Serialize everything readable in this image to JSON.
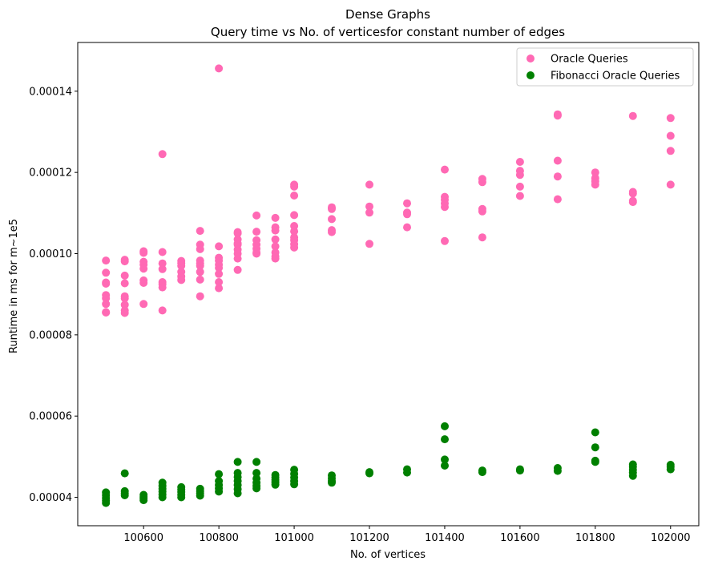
{
  "chart_data": {
    "type": "scatter",
    "title": "Dense Graphs",
    "subtitle": "Query time vs No. of verticesfor constant number of edges",
    "xlabel": "No. of vertices",
    "ylabel": "Runtime in ms for m~1e5",
    "xlim": [
      100425,
      102075
    ],
    "ylim": [
      3.3e-05,
      0.000152
    ],
    "xticks": [
      100600,
      100800,
      101000,
      101200,
      101400,
      101600,
      101800,
      102000
    ],
    "xtick_labels": [
      "100600",
      "100800",
      "101000",
      "101200",
      "101400",
      "101600",
      "101800",
      "102000"
    ],
    "yticks": [
      4e-05,
      6e-05,
      8e-05,
      0.0001,
      0.00012,
      0.00014
    ],
    "ytick_labels": [
      "0.00004",
      "0.00006",
      "0.00008",
      "0.00010",
      "0.00012",
      "0.00014"
    ],
    "grid": false,
    "legend_position": "top-right",
    "series": [
      {
        "name": "Oracle Queries",
        "color": "#ff69b4",
        "points": [
          [
            100500,
            9.83e-05
          ],
          [
            100500,
            9.53e-05
          ],
          [
            100500,
            9.29e-05
          ],
          [
            100500,
            9.26e-05
          ],
          [
            100500,
            8.98e-05
          ],
          [
            100500,
            8.9e-05
          ],
          [
            100500,
            8.76e-05
          ],
          [
            100500,
            8.56e-05
          ],
          [
            100500,
            8.55e-05
          ],
          [
            100550,
            9.85e-05
          ],
          [
            100550,
            9.81e-05
          ],
          [
            100550,
            9.46e-05
          ],
          [
            100550,
            9.27e-05
          ],
          [
            100550,
            8.95e-05
          ],
          [
            100550,
            8.9e-05
          ],
          [
            100550,
            8.74e-05
          ],
          [
            100550,
            8.6e-05
          ],
          [
            100550,
            8.54e-05
          ],
          [
            100600,
            0.0001006
          ],
          [
            100600,
            0.0001002
          ],
          [
            100600,
            9.8e-05
          ],
          [
            100600,
            9.73e-05
          ],
          [
            100600,
            9.63e-05
          ],
          [
            100600,
            9.34e-05
          ],
          [
            100600,
            9.28e-05
          ],
          [
            100600,
            8.76e-05
          ],
          [
            100650,
            0.0001245
          ],
          [
            100650,
            0.0001004
          ],
          [
            100650,
            9.76e-05
          ],
          [
            100650,
            9.62e-05
          ],
          [
            100650,
            9.3e-05
          ],
          [
            100650,
            9.25e-05
          ],
          [
            100650,
            9.17e-05
          ],
          [
            100650,
            8.6e-05
          ],
          [
            100700,
            9.82e-05
          ],
          [
            100700,
            9.77e-05
          ],
          [
            100700,
            9.7e-05
          ],
          [
            100700,
            9.55e-05
          ],
          [
            100700,
            9.44e-05
          ],
          [
            100700,
            9.35e-05
          ],
          [
            100750,
            0.0001056
          ],
          [
            100750,
            0.0001022
          ],
          [
            100750,
            0.0001011
          ],
          [
            100750,
            9.83e-05
          ],
          [
            100750,
            9.76e-05
          ],
          [
            100750,
            9.7e-05
          ],
          [
            100750,
            9.55e-05
          ],
          [
            100750,
            9.36e-05
          ],
          [
            100750,
            8.95e-05
          ],
          [
            100800,
            0.0001456
          ],
          [
            100800,
            0.0001018
          ],
          [
            100800,
            9.9e-05
          ],
          [
            100800,
            9.83e-05
          ],
          [
            100800,
            9.73e-05
          ],
          [
            100800,
            9.65e-05
          ],
          [
            100800,
            9.5e-05
          ],
          [
            100800,
            9.3e-05
          ],
          [
            100800,
            9.15e-05
          ],
          [
            100850,
            0.0001053
          ],
          [
            100850,
            0.000105
          ],
          [
            100850,
            0.0001035
          ],
          [
            100850,
            0.0001025
          ],
          [
            100850,
            0.0001022
          ],
          [
            100850,
            0.000101
          ],
          [
            100850,
            0.0001
          ],
          [
            100850,
            9.88e-05
          ],
          [
            100850,
            9.6e-05
          ],
          [
            100900,
            0.0001094
          ],
          [
            100900,
            0.0001054
          ],
          [
            100900,
            0.0001033
          ],
          [
            100900,
            0.0001022
          ],
          [
            100900,
            0.0001012
          ],
          [
            100900,
            0.0001003
          ],
          [
            100900,
            0.0001
          ],
          [
            100950,
            0.0001088
          ],
          [
            100950,
            0.0001065
          ],
          [
            100950,
            0.0001057
          ],
          [
            100950,
            0.0001035
          ],
          [
            100950,
            0.0001018
          ],
          [
            100950,
            0.0001003
          ],
          [
            100950,
            9.93e-05
          ],
          [
            100950,
            9.88e-05
          ],
          [
            101000,
            0.000117
          ],
          [
            101000,
            0.0001165
          ],
          [
            101000,
            0.0001143
          ],
          [
            101000,
            0.0001095
          ],
          [
            101000,
            0.0001068
          ],
          [
            101000,
            0.0001055
          ],
          [
            101000,
            0.000104
          ],
          [
            101000,
            0.0001033
          ],
          [
            101000,
            0.0001023
          ],
          [
            101000,
            0.0001015
          ],
          [
            101100,
            0.0001114
          ],
          [
            101100,
            0.000111
          ],
          [
            101100,
            0.0001085
          ],
          [
            101100,
            0.0001058
          ],
          [
            101100,
            0.0001053
          ],
          [
            101200,
            0.000117
          ],
          [
            101200,
            0.0001116
          ],
          [
            101200,
            0.0001101
          ],
          [
            101200,
            0.0001024
          ],
          [
            101300,
            0.0001124
          ],
          [
            101300,
            0.0001101
          ],
          [
            101300,
            0.0001097
          ],
          [
            101300,
            0.0001065
          ],
          [
            101400,
            0.0001207
          ],
          [
            101400,
            0.000114
          ],
          [
            101400,
            0.0001133
          ],
          [
            101400,
            0.0001124
          ],
          [
            101400,
            0.0001115
          ],
          [
            101400,
            0.0001031
          ],
          [
            101500,
            0.0001184
          ],
          [
            101500,
            0.0001176
          ],
          [
            101500,
            0.000111
          ],
          [
            101500,
            0.0001104
          ],
          [
            101500,
            0.000104
          ],
          [
            101600,
            0.0001226
          ],
          [
            101600,
            0.0001204
          ],
          [
            101600,
            0.0001194
          ],
          [
            101600,
            0.0001165
          ],
          [
            101600,
            0.0001142
          ],
          [
            101700,
            0.0001343
          ],
          [
            101700,
            0.000134
          ],
          [
            101700,
            0.0001229
          ],
          [
            101700,
            0.000119
          ],
          [
            101700,
            0.0001134
          ],
          [
            101800,
            0.00012
          ],
          [
            101800,
            0.0001186
          ],
          [
            101800,
            0.0001178
          ],
          [
            101800,
            0.000117
          ],
          [
            101900,
            0.0001339
          ],
          [
            101900,
            0.0001152
          ],
          [
            101900,
            0.0001148
          ],
          [
            101900,
            0.000113
          ],
          [
            101900,
            0.0001127
          ],
          [
            102000,
            0.0001334
          ],
          [
            102000,
            0.000129
          ],
          [
            102000,
            0.0001253
          ],
          [
            102000,
            0.000117
          ]
        ]
      },
      {
        "name": "Fibonacci Oracle Queries",
        "color": "#008000",
        "points": [
          [
            100500,
            4.12e-05
          ],
          [
            100500,
            4.05e-05
          ],
          [
            100500,
            3.98e-05
          ],
          [
            100500,
            3.92e-05
          ],
          [
            100500,
            3.86e-05
          ],
          [
            100550,
            4.59e-05
          ],
          [
            100550,
            4.15e-05
          ],
          [
            100550,
            4.1e-05
          ],
          [
            100550,
            4.05e-05
          ],
          [
            100600,
            4.06e-05
          ],
          [
            100600,
            4.01e-05
          ],
          [
            100600,
            3.97e-05
          ],
          [
            100600,
            3.93e-05
          ],
          [
            100650,
            4.36e-05
          ],
          [
            100650,
            4.28e-05
          ],
          [
            100650,
            4.21e-05
          ],
          [
            100650,
            4.14e-05
          ],
          [
            100650,
            4.07e-05
          ],
          [
            100650,
            4e-05
          ],
          [
            100700,
            4.25e-05
          ],
          [
            100700,
            4.19e-05
          ],
          [
            100700,
            4.13e-05
          ],
          [
            100700,
            4.06e-05
          ],
          [
            100700,
            4e-05
          ],
          [
            100750,
            4.21e-05
          ],
          [
            100750,
            4.15e-05
          ],
          [
            100750,
            4.1e-05
          ],
          [
            100750,
            4.04e-05
          ],
          [
            100800,
            4.57e-05
          ],
          [
            100800,
            4.4e-05
          ],
          [
            100800,
            4.3e-05
          ],
          [
            100800,
            4.22e-05
          ],
          [
            100800,
            4.14e-05
          ],
          [
            100850,
            4.87e-05
          ],
          [
            100850,
            4.6e-05
          ],
          [
            100850,
            4.5e-05
          ],
          [
            100850,
            4.4e-05
          ],
          [
            100850,
            4.3e-05
          ],
          [
            100850,
            4.2e-05
          ],
          [
            100850,
            4.1e-05
          ],
          [
            100900,
            4.87e-05
          ],
          [
            100900,
            4.6e-05
          ],
          [
            100900,
            4.46e-05
          ],
          [
            100900,
            4.36e-05
          ],
          [
            100900,
            4.28e-05
          ],
          [
            100900,
            4.22e-05
          ],
          [
            100950,
            4.55e-05
          ],
          [
            100950,
            4.49e-05
          ],
          [
            100950,
            4.43e-05
          ],
          [
            100950,
            4.37e-05
          ],
          [
            100950,
            4.31e-05
          ],
          [
            101000,
            4.68e-05
          ],
          [
            101000,
            4.58e-05
          ],
          [
            101000,
            4.49e-05
          ],
          [
            101000,
            4.4e-05
          ],
          [
            101000,
            4.32e-05
          ],
          [
            101100,
            4.54e-05
          ],
          [
            101100,
            4.47e-05
          ],
          [
            101100,
            4.4e-05
          ],
          [
            101100,
            4.36e-05
          ],
          [
            101200,
            4.62e-05
          ],
          [
            101200,
            4.59e-05
          ],
          [
            101300,
            4.69e-05
          ],
          [
            101300,
            4.61e-05
          ],
          [
            101400,
            5.75e-05
          ],
          [
            101400,
            5.43e-05
          ],
          [
            101400,
            4.93e-05
          ],
          [
            101400,
            4.78e-05
          ],
          [
            101500,
            4.66e-05
          ],
          [
            101500,
            4.62e-05
          ],
          [
            101600,
            4.69e-05
          ],
          [
            101600,
            4.66e-05
          ],
          [
            101700,
            4.72e-05
          ],
          [
            101700,
            4.65e-05
          ],
          [
            101800,
            5.6e-05
          ],
          [
            101800,
            5.23e-05
          ],
          [
            101800,
            4.9e-05
          ],
          [
            101800,
            4.87e-05
          ],
          [
            101900,
            4.81e-05
          ],
          [
            101900,
            4.75e-05
          ],
          [
            101900,
            4.68e-05
          ],
          [
            101900,
            4.61e-05
          ],
          [
            101900,
            4.53e-05
          ],
          [
            102000,
            4.8e-05
          ],
          [
            102000,
            4.75e-05
          ],
          [
            102000,
            4.69e-05
          ]
        ]
      }
    ]
  }
}
